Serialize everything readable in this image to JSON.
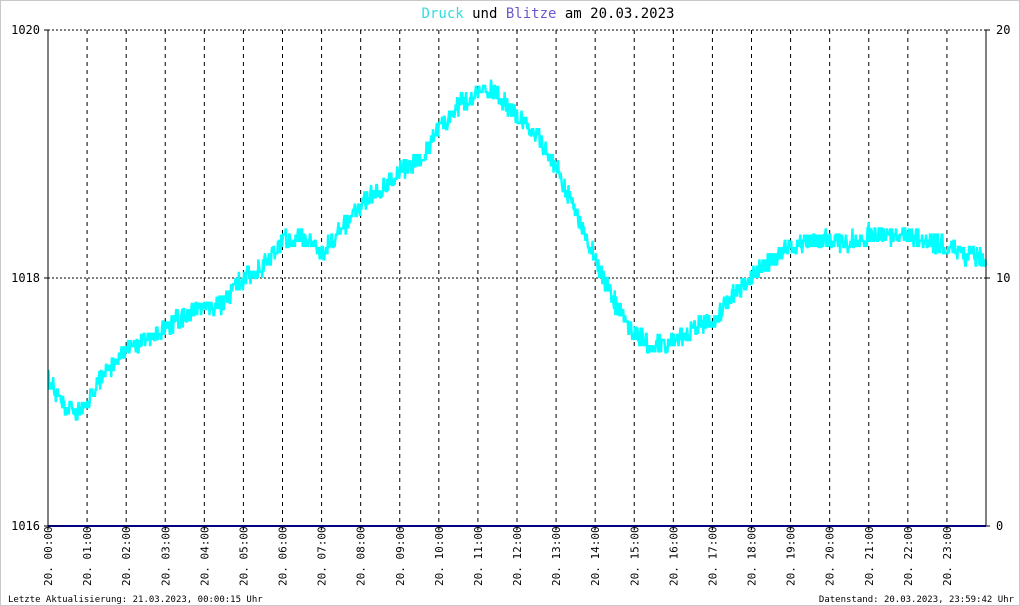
{
  "header": {
    "title_part1": "Druck",
    "title_part2": " und ",
    "title_part3": "Blitze",
    "title_part4": " am 20.03.2023"
  },
  "footer": {
    "left": "Letzte Aktualisierung: 21.03.2023, 00:00:15 Uhr",
    "right": "Datenstand: 20.03.2023, 23:59:42 Uhr"
  },
  "colors": {
    "druck": "#00ffff",
    "blitze": "#000080",
    "title_druck": "#33dddd",
    "title_blitze": "#6a5acd",
    "grid": "#000000",
    "frame": "#000000"
  },
  "chart_data": {
    "type": "line",
    "title": "Druck und Blitze am 20.03.2023",
    "xlabel": "",
    "ylabel": "",
    "x_range_hours": [
      0,
      24
    ],
    "x_ticks": [
      "20. 00:00",
      "20. 01:00",
      "20. 02:00",
      "20. 03:00",
      "20. 04:00",
      "20. 05:00",
      "20. 06:00",
      "20. 07:00",
      "20. 08:00",
      "20. 09:00",
      "20. 10:00",
      "20. 11:00",
      "20. 12:00",
      "20. 13:00",
      "20. 14:00",
      "20. 15:00",
      "20. 16:00",
      "20. 17:00",
      "20. 18:00",
      "20. 19:00",
      "20. 20:00",
      "20. 21:00",
      "20. 22:00",
      "20. 23:00"
    ],
    "y_left": {
      "label": "Druck",
      "range": [
        1016,
        1020
      ],
      "ticks": [
        "1016",
        "1018",
        "1020"
      ]
    },
    "y_right": {
      "label": "Blitze",
      "range": [
        0,
        20
      ],
      "ticks": [
        "0",
        "10",
        "20"
      ]
    },
    "grid": true,
    "series": [
      {
        "name": "Druck",
        "axis": "left",
        "noise": 0.08,
        "x": [
          0,
          0.25,
          0.5,
          0.75,
          1,
          1.5,
          2,
          2.5,
          3,
          3.5,
          4,
          4.5,
          5,
          5.5,
          6,
          6.5,
          7,
          7.5,
          8,
          8.5,
          9,
          9.5,
          10,
          10.5,
          11,
          11.5,
          12,
          12.5,
          13,
          13.5,
          14,
          14.5,
          15,
          15.5,
          16,
          16.5,
          17,
          17.5,
          18,
          18.5,
          19,
          19.5,
          20,
          20.5,
          21,
          21.5,
          22,
          22.5,
          23,
          23.5,
          24
        ],
        "values": [
          1017.2,
          1017.05,
          1016.95,
          1016.9,
          1017.0,
          1017.25,
          1017.4,
          1017.5,
          1017.6,
          1017.7,
          1017.75,
          1017.8,
          1018.0,
          1018.1,
          1018.3,
          1018.35,
          1018.2,
          1018.4,
          1018.6,
          1018.7,
          1018.85,
          1018.95,
          1019.2,
          1019.4,
          1019.5,
          1019.5,
          1019.3,
          1019.15,
          1018.9,
          1018.55,
          1018.15,
          1017.8,
          1017.55,
          1017.45,
          1017.5,
          1017.6,
          1017.65,
          1017.85,
          1018.0,
          1018.15,
          1018.25,
          1018.3,
          1018.3,
          1018.3,
          1018.35,
          1018.35,
          1018.35,
          1018.3,
          1018.25,
          1018.2,
          1018.15
        ]
      },
      {
        "name": "Blitze",
        "axis": "right",
        "x": [
          0,
          24
        ],
        "values": [
          0,
          0
        ]
      }
    ]
  }
}
